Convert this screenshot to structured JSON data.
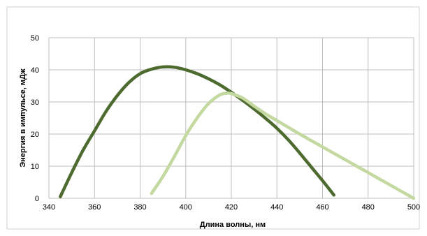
{
  "chart_data": {
    "type": "line",
    "title": "",
    "xlabel": "Длина волны, нм",
    "ylabel": "Энергия в импульсе, мДж",
    "xlim": [
      340,
      500
    ],
    "ylim": [
      0,
      50
    ],
    "x_ticks": [
      "340",
      "360",
      "380",
      "400",
      "420",
      "440",
      "460",
      "480",
      "500"
    ],
    "y_ticks": [
      "0",
      "10",
      "20",
      "30",
      "40",
      "50"
    ],
    "grid": true,
    "legend": "none",
    "series": [
      {
        "color": "#4e6b2f",
        "points": [
          [
            345,
            0.5
          ],
          [
            350,
            8
          ],
          [
            355,
            15
          ],
          [
            360,
            21
          ],
          [
            365,
            27
          ],
          [
            370,
            32
          ],
          [
            375,
            36
          ],
          [
            380,
            38.8
          ],
          [
            385,
            40.2
          ],
          [
            390,
            40.9
          ],
          [
            395,
            40.8
          ],
          [
            400,
            40
          ],
          [
            405,
            38.8
          ],
          [
            410,
            37.2
          ],
          [
            415,
            35.3
          ],
          [
            420,
            33
          ],
          [
            425,
            30.5
          ],
          [
            430,
            27.8
          ],
          [
            435,
            24.9
          ],
          [
            440,
            21.8
          ],
          [
            445,
            18.2
          ],
          [
            450,
            14.1
          ],
          [
            455,
            9.8
          ],
          [
            460,
            5.5
          ],
          [
            465,
            1
          ]
        ]
      },
      {
        "color": "#c3d99f",
        "points": [
          [
            385,
            1.5
          ],
          [
            390,
            6.8
          ],
          [
            395,
            13
          ],
          [
            400,
            19.5
          ],
          [
            405,
            25
          ],
          [
            410,
            29.5
          ],
          [
            415,
            32.2
          ],
          [
            418,
            32.7
          ],
          [
            420,
            32.6
          ],
          [
            425,
            31.2
          ],
          [
            430,
            28.7
          ],
          [
            435,
            26.3
          ],
          [
            440,
            24.2
          ],
          [
            450,
            20
          ],
          [
            460,
            16
          ],
          [
            470,
            12
          ],
          [
            480,
            8
          ],
          [
            490,
            4
          ],
          [
            500,
            0
          ]
        ]
      }
    ]
  }
}
